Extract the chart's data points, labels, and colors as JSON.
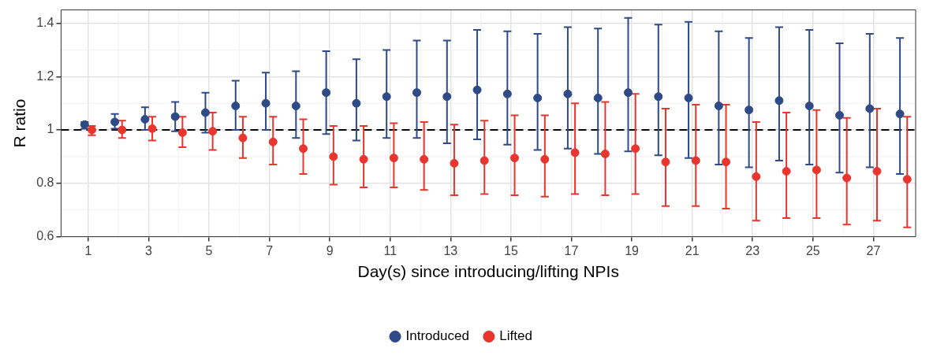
{
  "chart_data": {
    "type": "scatter",
    "xlabel": "Day(s) since introducing/lifting NPIs",
    "ylabel": "R ratio",
    "series": [
      {
        "name": "Introduced",
        "color": "#2e4a87",
        "x": [
          0.88,
          1.88,
          2.88,
          3.88,
          4.88,
          5.88,
          6.88,
          7.88,
          8.88,
          9.88,
          10.88,
          11.88,
          12.88,
          13.88,
          14.88,
          15.88,
          16.88,
          17.88,
          18.88,
          19.88,
          20.88,
          21.88,
          22.88,
          23.88,
          24.88,
          25.88,
          26.88,
          27.88
        ],
        "values": [
          1.02,
          1.03,
          1.04,
          1.05,
          1.065,
          1.09,
          1.1,
          1.09,
          1.14,
          1.1,
          1.125,
          1.14,
          1.125,
          1.15,
          1.135,
          1.12,
          1.135,
          1.12,
          1.14,
          1.125,
          1.12,
          1.09,
          1.075,
          1.11,
          1.09,
          1.055,
          1.08,
          1.06
        ],
        "errors": [
          [
            1.005,
            1.03
          ],
          [
            1.005,
            1.06
          ],
          [
            1.0,
            1.085
          ],
          [
            0.995,
            1.105
          ],
          [
            0.99,
            1.14
          ],
          [
            1.0,
            1.185
          ],
          [
            1.0,
            1.215
          ],
          [
            0.97,
            1.22
          ],
          [
            0.985,
            1.295
          ],
          [
            0.96,
            1.265
          ],
          [
            0.97,
            1.3
          ],
          [
            0.97,
            1.335
          ],
          [
            0.95,
            1.335
          ],
          [
            0.965,
            1.375
          ],
          [
            0.945,
            1.37
          ],
          [
            0.925,
            1.36
          ],
          [
            0.93,
            1.385
          ],
          [
            0.91,
            1.38
          ],
          [
            0.92,
            1.42
          ],
          [
            0.905,
            1.395
          ],
          [
            0.895,
            1.405
          ],
          [
            0.87,
            1.37
          ],
          [
            0.86,
            1.345
          ],
          [
            0.885,
            1.385
          ],
          [
            0.87,
            1.375
          ],
          [
            0.84,
            1.325
          ],
          [
            0.86,
            1.36
          ],
          [
            0.835,
            1.345
          ]
        ]
      },
      {
        "name": "Lifted",
        "color": "#e8352e",
        "x": [
          1.12,
          2.12,
          3.12,
          4.12,
          5.12,
          6.12,
          7.12,
          8.12,
          9.12,
          10.12,
          11.12,
          12.12,
          13.12,
          14.12,
          15.12,
          16.12,
          17.12,
          18.12,
          19.12,
          20.12,
          21.12,
          22.12,
          23.12,
          24.12,
          25.12,
          26.12,
          27.12,
          28.12
        ],
        "values": [
          1.0,
          1.0,
          1.005,
          0.99,
          0.995,
          0.97,
          0.955,
          0.93,
          0.9,
          0.89,
          0.895,
          0.89,
          0.875,
          0.885,
          0.895,
          0.89,
          0.915,
          0.91,
          0.93,
          0.88,
          0.885,
          0.88,
          0.825,
          0.845,
          0.85,
          0.82,
          0.845,
          0.815
        ],
        "errors": [
          [
            0.98,
            1.015
          ],
          [
            0.97,
            1.035
          ],
          [
            0.96,
            1.05
          ],
          [
            0.935,
            1.05
          ],
          [
            0.925,
            1.065
          ],
          [
            0.895,
            1.05
          ],
          [
            0.87,
            1.05
          ],
          [
            0.835,
            1.04
          ],
          [
            0.795,
            1.015
          ],
          [
            0.785,
            1.015
          ],
          [
            0.785,
            1.025
          ],
          [
            0.775,
            1.03
          ],
          [
            0.755,
            1.02
          ],
          [
            0.76,
            1.035
          ],
          [
            0.755,
            1.055
          ],
          [
            0.75,
            1.055
          ],
          [
            0.76,
            1.1
          ],
          [
            0.755,
            1.105
          ],
          [
            0.76,
            1.135
          ],
          [
            0.715,
            1.08
          ],
          [
            0.715,
            1.095
          ],
          [
            0.705,
            1.095
          ],
          [
            0.66,
            1.03
          ],
          [
            0.67,
            1.065
          ],
          [
            0.67,
            1.075
          ],
          [
            0.645,
            1.045
          ],
          [
            0.66,
            1.08
          ],
          [
            0.635,
            1.05
          ]
        ]
      }
    ],
    "xlim": [
      0.1,
      28.4
    ],
    "xticks": [
      1,
      3,
      5,
      7,
      9,
      11,
      13,
      15,
      17,
      19,
      21,
      23,
      25,
      27
    ],
    "ylim": [
      0.6,
      1.45
    ],
    "yticks": [
      0.6,
      0.8,
      1.0,
      1.2,
      1.4
    ],
    "ref_lines": [
      {
        "axis": "y",
        "value": 1.0,
        "color": "#000000",
        "line_style": "dashed"
      }
    ],
    "grid": true,
    "legend": "bottom",
    "marker": "circle"
  }
}
